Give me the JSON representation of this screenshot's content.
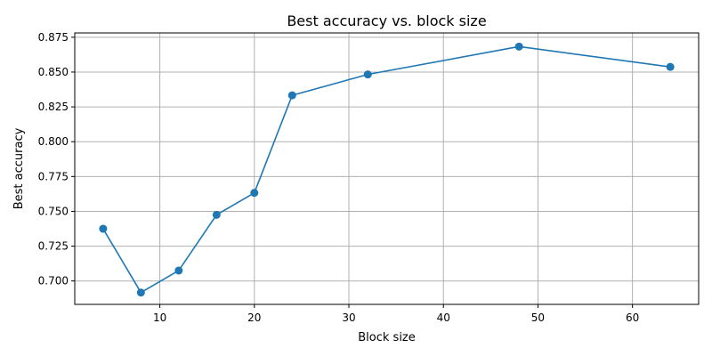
{
  "chart_data": {
    "type": "line",
    "title": "Best accuracy vs. block size",
    "xlabel": "Block size",
    "ylabel": "Best accuracy",
    "x": [
      4,
      8,
      12,
      16,
      20,
      24,
      32,
      48,
      64
    ],
    "series": [
      {
        "values": [
          0.7375,
          0.6917,
          0.7075,
          0.7475,
          0.7633,
          0.8333,
          0.8483,
          0.8683,
          0.8537
        ],
        "color": "#1f77b4",
        "marker": "circle"
      }
    ],
    "xlim": [
      1,
      67
    ],
    "ylim": [
      0.6832,
      0.8781
    ],
    "xticks": [
      10,
      20,
      30,
      40,
      50,
      60
    ],
    "xtick_labels": [
      "10",
      "20",
      "30",
      "40",
      "50",
      "60"
    ],
    "yticks": [
      0.7,
      0.725,
      0.75,
      0.775,
      0.8,
      0.825,
      0.85,
      0.875
    ],
    "ytick_labels": [
      "0.700",
      "0.725",
      "0.750",
      "0.775",
      "0.800",
      "0.825",
      "0.850",
      "0.875"
    ],
    "grid": true,
    "grid_color": "#b0b0b0",
    "legend": false
  }
}
